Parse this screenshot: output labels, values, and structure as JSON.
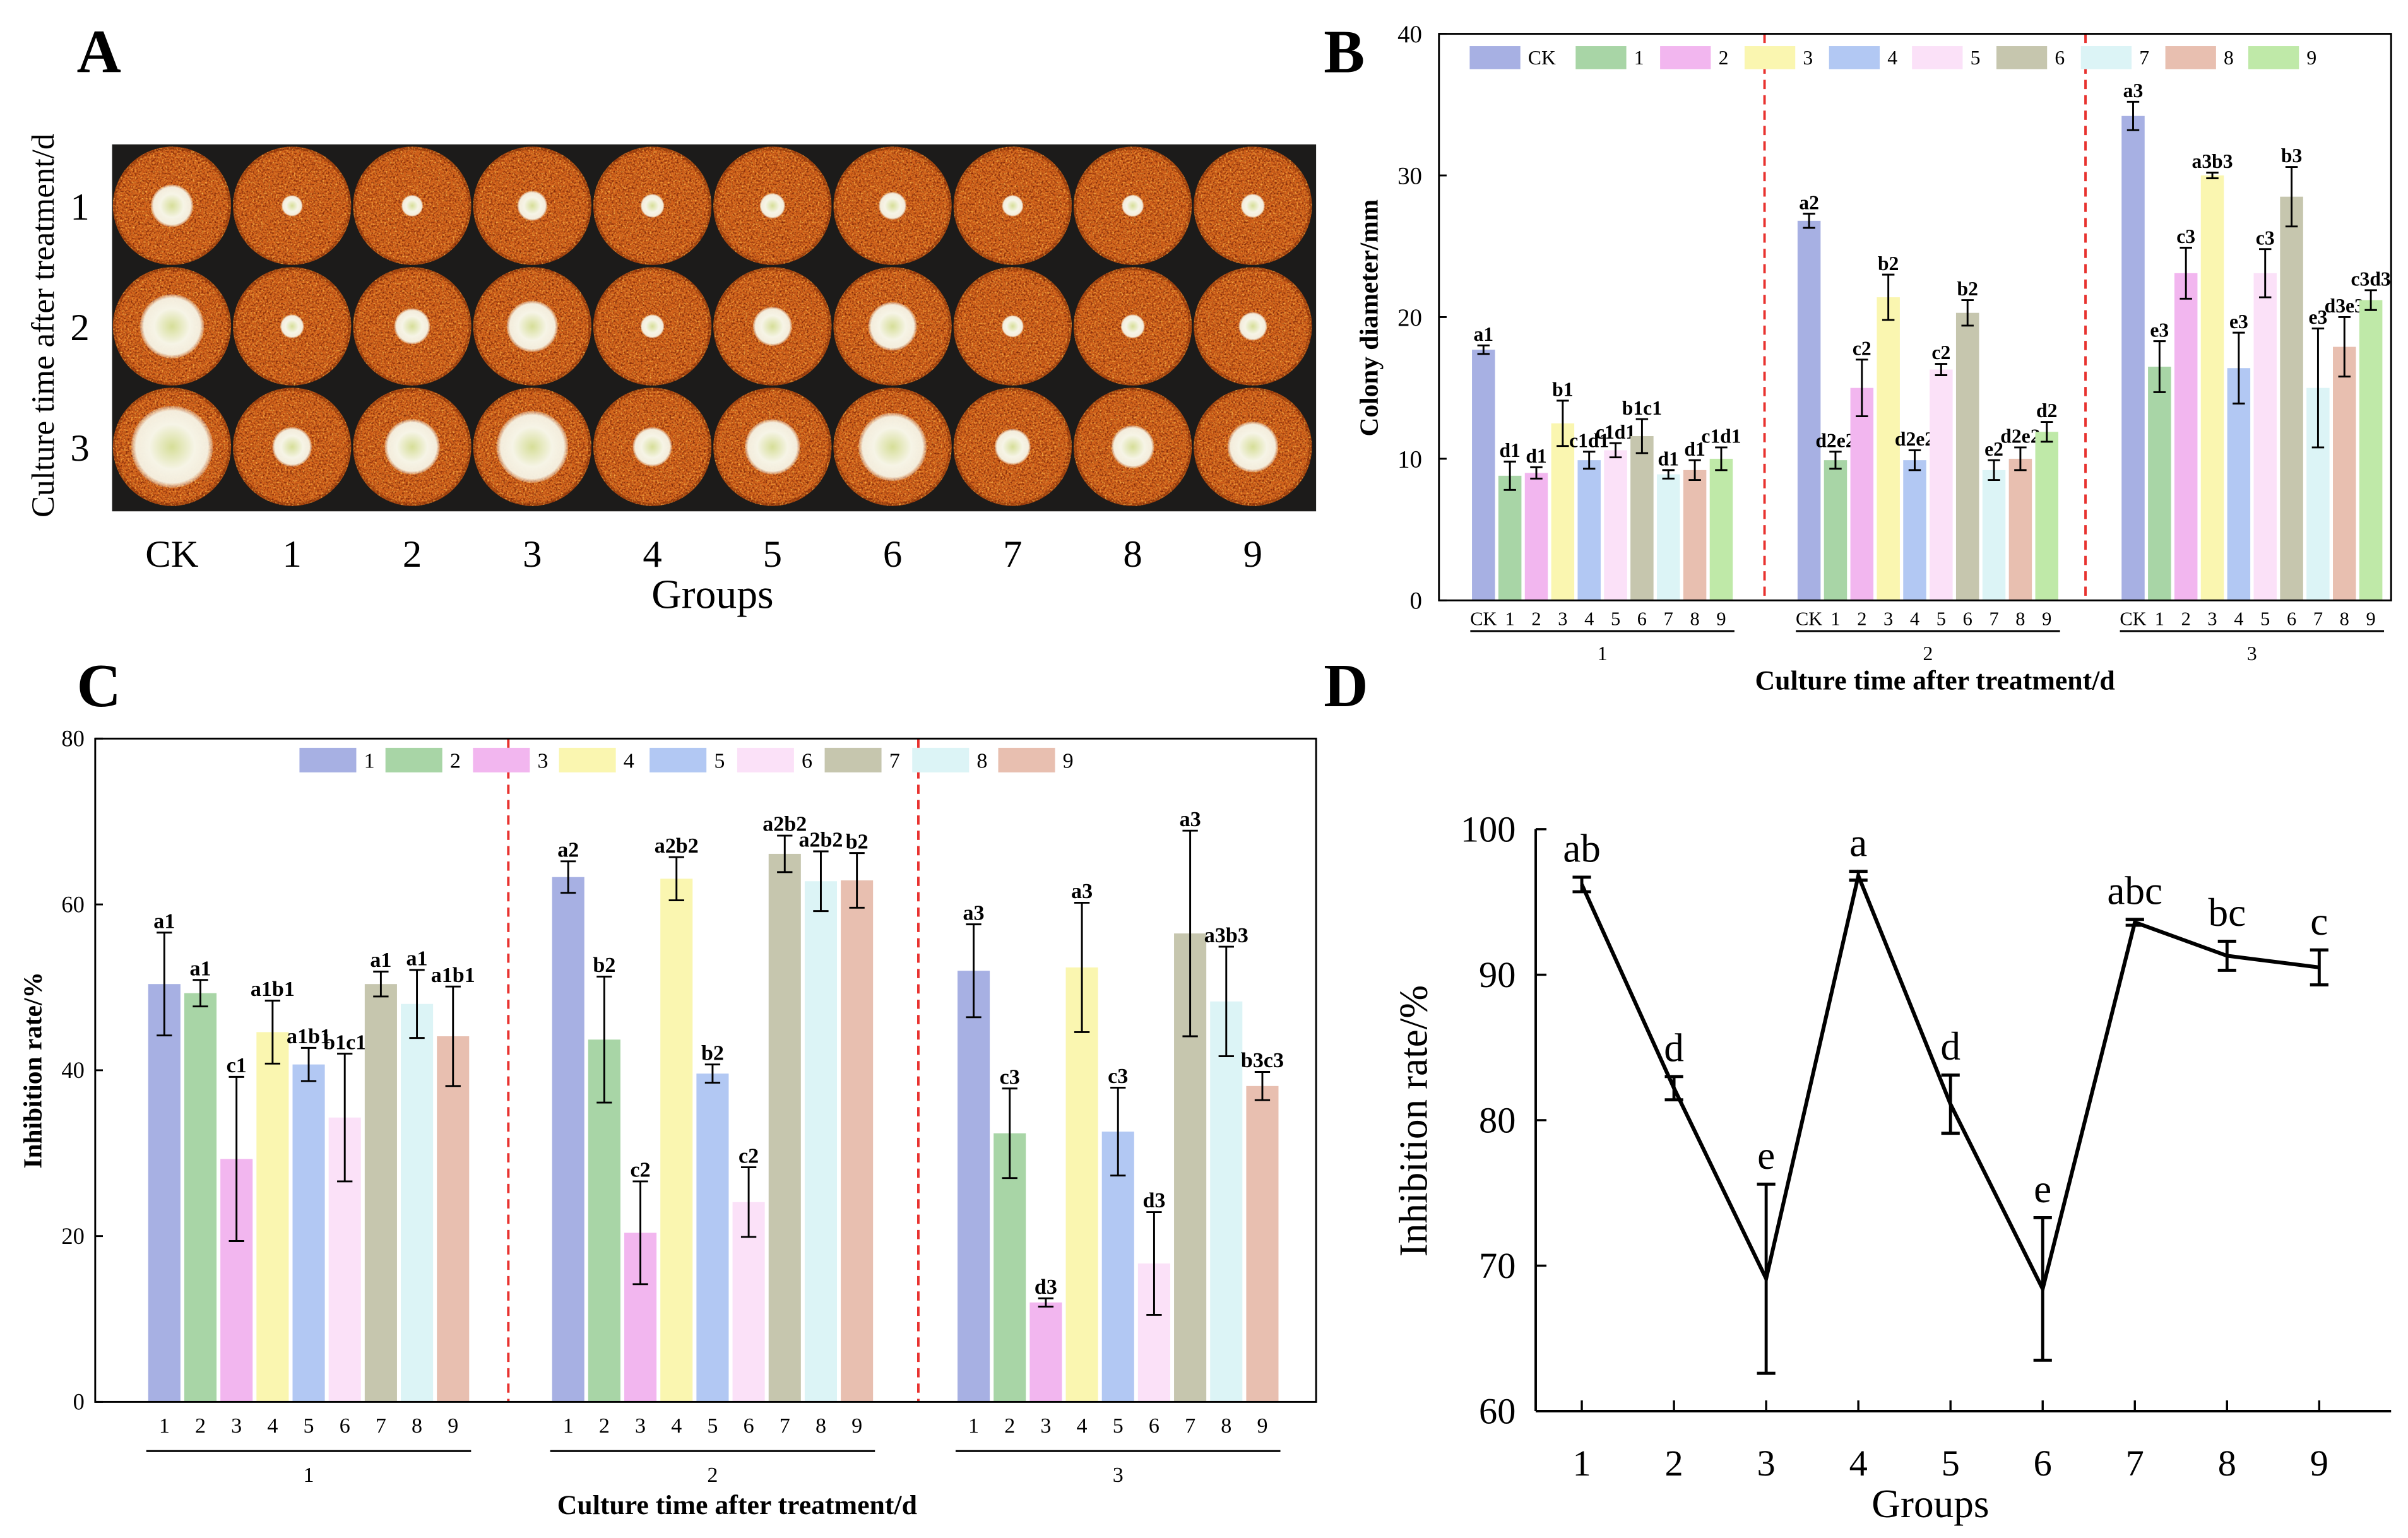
{
  "panel_a": {
    "letter": "A",
    "ylabel": "Culture time after treatment/d",
    "row_labels": [
      "1",
      "2",
      "3"
    ],
    "column_labels": [
      "CK",
      "1",
      "2",
      "3",
      "4",
      "5",
      "6",
      "7",
      "8",
      "9"
    ],
    "xlabel": "Groups",
    "colors": {
      "background": "#1c1b1a",
      "dish": "#d2631b",
      "dish_rim": "#a8480f",
      "colony_center": "#d6de98",
      "colony_edge": "#f6f4e6"
    }
  },
  "divider_color": "#e8322f",
  "chart_data": [
    {
      "panel": "B",
      "type": "bar",
      "ylabel": "Colony diameter/mm",
      "xlabel": "Culture time after treatment/d",
      "ylim": [
        0,
        40
      ],
      "yticks": [
        0,
        10,
        20,
        30,
        40
      ],
      "categories": [
        "CK",
        "1",
        "2",
        "3",
        "4",
        "5",
        "6",
        "7",
        "8",
        "9"
      ],
      "colors": [
        "#a7b0e3",
        "#a8d5a6",
        "#f2b6ef",
        "#faf6b0",
        "#b2c8f3",
        "#fbe1f8",
        "#c6c6ae",
        "#dcf4f6",
        "#e8bfb0",
        "#bfe9a8"
      ],
      "legend": {
        "position": "top",
        "entries": [
          "CK",
          "1",
          "2",
          "3",
          "4",
          "5",
          "6",
          "7",
          "8",
          "9"
        ]
      },
      "series": [
        {
          "name": "1",
          "values": [
            17.7,
            8.8,
            9.0,
            12.5,
            9.9,
            10.6,
            11.6,
            8.9,
            9.2,
            10.0
          ],
          "errors": [
            0.3,
            1.0,
            0.4,
            1.6,
            0.6,
            0.5,
            1.2,
            0.3,
            0.7,
            0.8
          ],
          "letters": [
            "a1",
            "d1",
            "d1",
            "b1",
            "c1d1",
            "c1d1",
            "b1c1",
            "d1",
            "d1",
            "c1d1"
          ]
        },
        {
          "name": "2",
          "values": [
            26.8,
            9.9,
            15.0,
            21.4,
            9.9,
            16.3,
            20.3,
            9.2,
            10.0,
            11.9
          ],
          "errors": [
            0.5,
            0.6,
            2.0,
            1.6,
            0.7,
            0.4,
            0.9,
            0.7,
            0.8,
            0.7
          ],
          "letters": [
            "a2",
            "d2e2",
            "c2",
            "b2",
            "d2e2",
            "c2",
            "b2",
            "e2",
            "d2e2",
            "d2"
          ]
        },
        {
          "name": "3",
          "values": [
            34.2,
            16.5,
            23.1,
            30.0,
            16.4,
            23.1,
            28.5,
            15.0,
            17.9,
            21.2
          ],
          "errors": [
            1.0,
            1.8,
            1.8,
            0.2,
            2.5,
            1.7,
            2.1,
            4.2,
            2.1,
            0.7
          ],
          "letters": [
            "a3",
            "e3",
            "c3",
            "a3b3",
            "e3",
            "c3",
            "b3",
            "e3",
            "d3e3",
            "c3d3"
          ]
        }
      ]
    },
    {
      "panel": "C",
      "type": "bar",
      "ylabel": "Inhibition rate/%",
      "xlabel": "Culture time after treatment/d",
      "ylim": [
        0,
        80
      ],
      "yticks": [
        0,
        20,
        40,
        60,
        80
      ],
      "categories": [
        "1",
        "2",
        "3",
        "4",
        "5",
        "6",
        "7",
        "8",
        "9"
      ],
      "colors": [
        "#a7b0e3",
        "#a8d5a6",
        "#f2b6ef",
        "#faf6b0",
        "#b2c8f3",
        "#fbe1f8",
        "#c6c6ae",
        "#dcf4f6",
        "#e8bfb0"
      ],
      "legend": {
        "position": "top",
        "entries": [
          "1",
          "2",
          "3",
          "4",
          "5",
          "6",
          "7",
          "8",
          "9"
        ]
      },
      "series": [
        {
          "name": "1",
          "values": [
            50.4,
            49.3,
            29.3,
            44.6,
            40.7,
            34.3,
            50.4,
            48.0,
            44.1
          ],
          "errors": [
            6.2,
            1.6,
            9.9,
            3.8,
            2.0,
            7.7,
            1.5,
            4.1,
            6.0
          ],
          "letters": [
            "a1",
            "a1",
            "c1",
            "a1b1",
            "a1b1",
            "b1c1",
            "a1",
            "a1",
            "a1b1"
          ]
        },
        {
          "name": "2",
          "values": [
            63.3,
            43.7,
            20.4,
            63.1,
            39.6,
            24.1,
            66.1,
            62.8,
            62.9
          ],
          "errors": [
            1.9,
            7.6,
            6.2,
            2.6,
            1.1,
            4.2,
            2.2,
            3.6,
            3.3
          ],
          "letters": [
            "a2",
            "b2",
            "c2",
            "a2b2",
            "b2",
            "c2",
            "a2b2",
            "a2b2",
            "b2"
          ]
        },
        {
          "name": "3",
          "values": [
            52.0,
            32.4,
            12.0,
            52.4,
            32.6,
            16.7,
            56.5,
            48.3,
            38.1
          ],
          "errors": [
            5.6,
            5.4,
            0.5,
            7.8,
            5.3,
            6.2,
            12.4,
            6.6,
            1.7
          ],
          "letters": [
            "a3",
            "c3",
            "d3",
            "a3",
            "c3",
            "d3",
            "a3",
            "a3b3",
            "b3c3"
          ]
        }
      ]
    },
    {
      "panel": "D",
      "type": "line",
      "ylabel": "Inhibition rate/%",
      "xlabel": "Groups",
      "xlim": [
        0.5,
        9.78
      ],
      "ylim": [
        60,
        100
      ],
      "xticks": [
        1,
        2,
        3,
        4,
        5,
        6,
        7,
        8,
        9
      ],
      "yticks": [
        60,
        70,
        80,
        90,
        100
      ],
      "x": [
        1,
        2,
        3,
        4,
        5,
        6,
        7,
        8,
        9
      ],
      "y": [
        96.2,
        82.2,
        69.1,
        96.8,
        81.1,
        68.4,
        93.6,
        91.3,
        90.5
      ],
      "errors": [
        0.5,
        0.8,
        6.5,
        0.3,
        2.0,
        4.9,
        0.2,
        1.0,
        1.2
      ],
      "letters": [
        "ab",
        "d",
        "e",
        "a",
        "d",
        "e",
        "abc",
        "bc",
        "c"
      ]
    }
  ]
}
